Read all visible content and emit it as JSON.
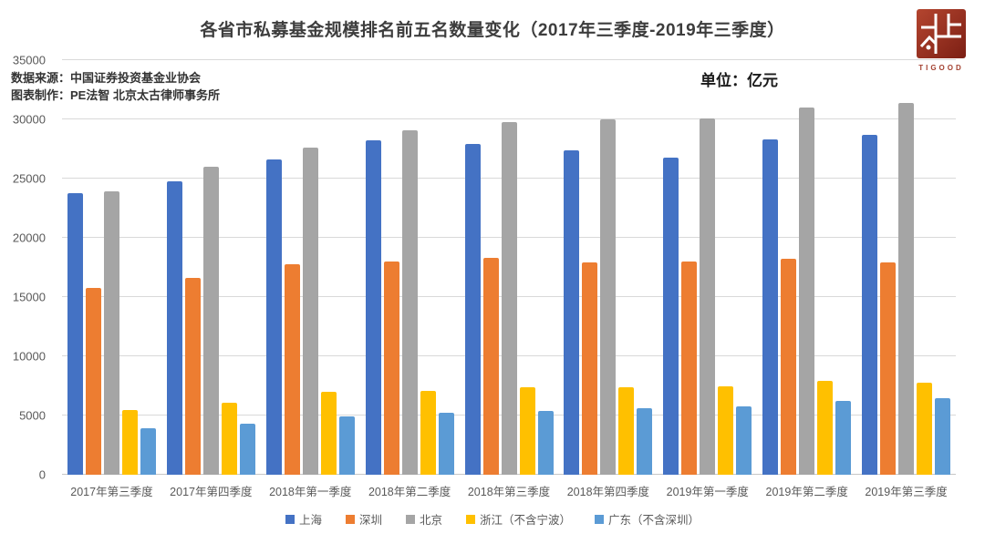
{
  "header": {
    "title": "各省市私募基金规模排名前五名数量变化（2017年三季度-2019年三季度）",
    "source_line1": "数据来源：中国证券投资基金业协会",
    "source_line2": "图表制作：PE法智 北京太古律师事务所",
    "unit_label": "单位：亿元",
    "logo_text": "TIGOOD",
    "logo_color": "#a3402f"
  },
  "chart_data": {
    "type": "bar",
    "title": "各省市私募基金规模排名前五名数量变化（2017年三季度-2019年三季度）",
    "unit": "亿元",
    "categories": [
      "2017年第三季度",
      "2017年第四季度",
      "2018年第一季度",
      "2018年第二季度",
      "2018年第三季度",
      "2018年第四季度",
      "2019年第一季度",
      "2019年第二季度",
      "2019年第三季度"
    ],
    "series": [
      {
        "name": "上海",
        "color": "#4472C4",
        "values": [
          23800,
          24800,
          26600,
          28200,
          27900,
          27400,
          26800,
          28300,
          28700
        ]
      },
      {
        "name": "深圳",
        "color": "#ED7D31",
        "values": [
          15800,
          16600,
          17800,
          18000,
          18300,
          17900,
          18000,
          18200,
          17900
        ]
      },
      {
        "name": "北京",
        "color": "#A5A5A5",
        "values": [
          23900,
          26000,
          27600,
          29100,
          29800,
          30000,
          30100,
          31000,
          31400
        ]
      },
      {
        "name": "浙江（不含宁波）",
        "color": "#FFC000",
        "values": [
          5500,
          6100,
          7000,
          7100,
          7400,
          7400,
          7500,
          7900,
          7800
        ]
      },
      {
        "name": "广东（不含深圳）",
        "color": "#5B9BD5",
        "values": [
          3900,
          4300,
          4900,
          5200,
          5400,
          5600,
          5800,
          6200,
          6500
        ]
      }
    ],
    "ylim": [
      0,
      35000
    ],
    "yticks": [
      0,
      5000,
      10000,
      15000,
      20000,
      25000,
      30000,
      35000
    ],
    "grid": true,
    "legend_position": "bottom",
    "gridline_color": "#d9d9d9",
    "axis_text_color": "#595959"
  }
}
